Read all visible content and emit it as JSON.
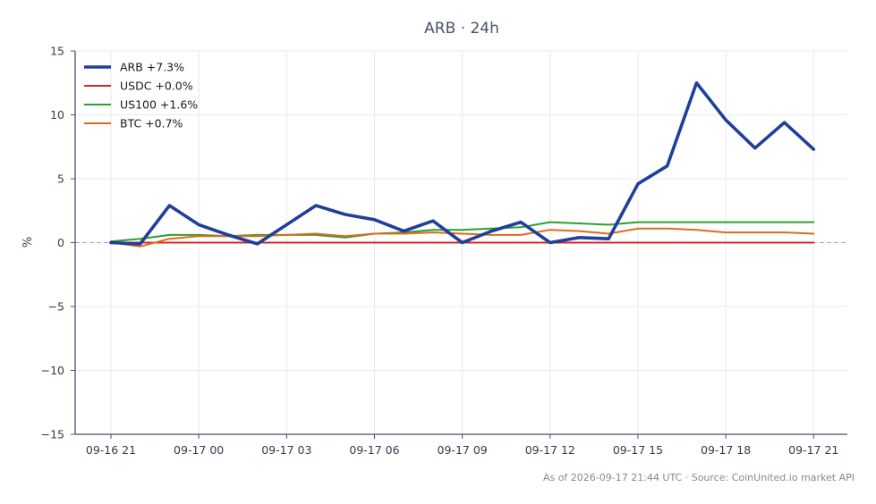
{
  "chart_data": {
    "type": "line",
    "title": "ARB · 24h",
    "xlabel": "",
    "ylabel": "%",
    "ylim": [
      -15,
      15
    ],
    "yticks": [
      15,
      10,
      5,
      0,
      -5,
      -10,
      -15
    ],
    "ytick_labels": [
      "15",
      "10",
      "5",
      "0",
      "−5",
      "−10",
      "−15"
    ],
    "xlim": [
      "2026-09-16 21:00",
      "2026-09-17 21:44"
    ],
    "xtick_labels": [
      "09-16 21",
      "09-17 00",
      "09-17 03",
      "09-17 06",
      "09-17 09",
      "09-17 12",
      "09-17 15",
      "09-17 18",
      "09-17 21"
    ],
    "x": [
      "09-16 21:00",
      "09-16 22:00",
      "09-16 23:00",
      "09-17 00:00",
      "09-17 01:00",
      "09-17 02:00",
      "09-17 03:00",
      "09-17 04:00",
      "09-17 05:00",
      "09-17 06:00",
      "09-17 07:00",
      "09-17 08:00",
      "09-17 09:00",
      "09-17 10:00",
      "09-17 11:00",
      "09-17 12:00",
      "09-17 13:00",
      "09-17 14:00",
      "09-17 15:00",
      "09-17 16:00",
      "09-17 17:00",
      "09-17 18:00",
      "09-17 19:00",
      "09-17 20:00",
      "09-17 21:00"
    ],
    "grid": true,
    "zero_line": "dashed",
    "legend_position": "top-left",
    "series": [
      {
        "name": "ARB +7.3%",
        "color": "#1f3f9a",
        "values": [
          0.0,
          -0.1,
          2.9,
          1.4,
          0.6,
          -0.1,
          1.4,
          2.9,
          2.2,
          1.8,
          0.9,
          1.7,
          0.0,
          0.9,
          1.6,
          0.0,
          0.4,
          0.3,
          4.6,
          6.0,
          12.5,
          9.6,
          7.4,
          9.4,
          7.3
        ]
      },
      {
        "name": "USDC +0.0%",
        "color": "#d62728",
        "values": [
          0,
          0,
          0,
          0,
          0,
          0,
          0,
          0,
          0,
          0,
          0,
          0,
          0,
          0,
          0,
          0,
          0,
          0,
          0,
          0,
          0,
          0,
          0,
          0,
          0
        ]
      },
      {
        "name": "US100 +1.6%",
        "color": "#2ca02c",
        "values": [
          0.1,
          0.3,
          0.6,
          0.6,
          0.5,
          0.6,
          0.6,
          0.6,
          0.4,
          0.7,
          0.8,
          1.0,
          1.0,
          1.1,
          1.2,
          1.6,
          1.5,
          1.4,
          1.6,
          1.6,
          1.6,
          1.6,
          1.6,
          1.6,
          1.6
        ]
      },
      {
        "name": "BTC +0.7%",
        "color": "#e06a1b",
        "values": [
          0.0,
          -0.3,
          0.3,
          0.5,
          0.5,
          0.5,
          0.6,
          0.7,
          0.5,
          0.7,
          0.7,
          0.8,
          0.7,
          0.6,
          0.6,
          1.0,
          0.9,
          0.7,
          1.1,
          1.1,
          1.0,
          0.8,
          0.8,
          0.8,
          0.7
        ]
      }
    ]
  },
  "footer": "As of 2026-09-17 21:44 UTC · Source: CoinUnited.io market API"
}
